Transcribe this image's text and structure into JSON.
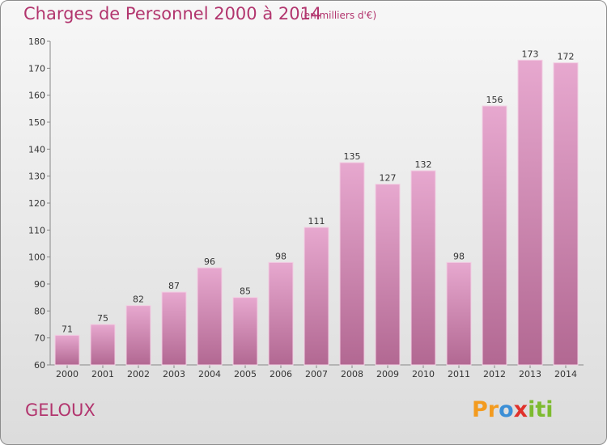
{
  "header": {
    "title": "Charges de Personnel 2000 à 2014",
    "subtitle": "(en milliers d'€)"
  },
  "commune": "GELOUX",
  "logo": {
    "text": "Proxiti",
    "colors": [
      "#f39b1f",
      "#3c8fd6",
      "#e0312b",
      "#7dbb2f"
    ]
  },
  "colors": {
    "accent": "#b2356e",
    "bar_top": "#e7a8cf",
    "bar_bottom": "#b26892"
  },
  "chart_data": {
    "type": "bar",
    "title": "Charges de Personnel 2000 à 2014",
    "subtitle": "(en milliers d'€)",
    "xlabel": "",
    "ylabel": "",
    "categories": [
      "2000",
      "2001",
      "2002",
      "2003",
      "2004",
      "2005",
      "2006",
      "2007",
      "2008",
      "2009",
      "2010",
      "2011",
      "2012",
      "2013",
      "2014"
    ],
    "values": [
      71,
      75,
      82,
      87,
      96,
      85,
      98,
      111,
      135,
      127,
      132,
      98,
      156,
      173,
      172
    ],
    "ylim": [
      60,
      180
    ],
    "yticks": [
      60,
      70,
      80,
      90,
      100,
      110,
      120,
      130,
      140,
      150,
      160,
      170,
      180
    ],
    "grid": false,
    "legend": "none"
  }
}
